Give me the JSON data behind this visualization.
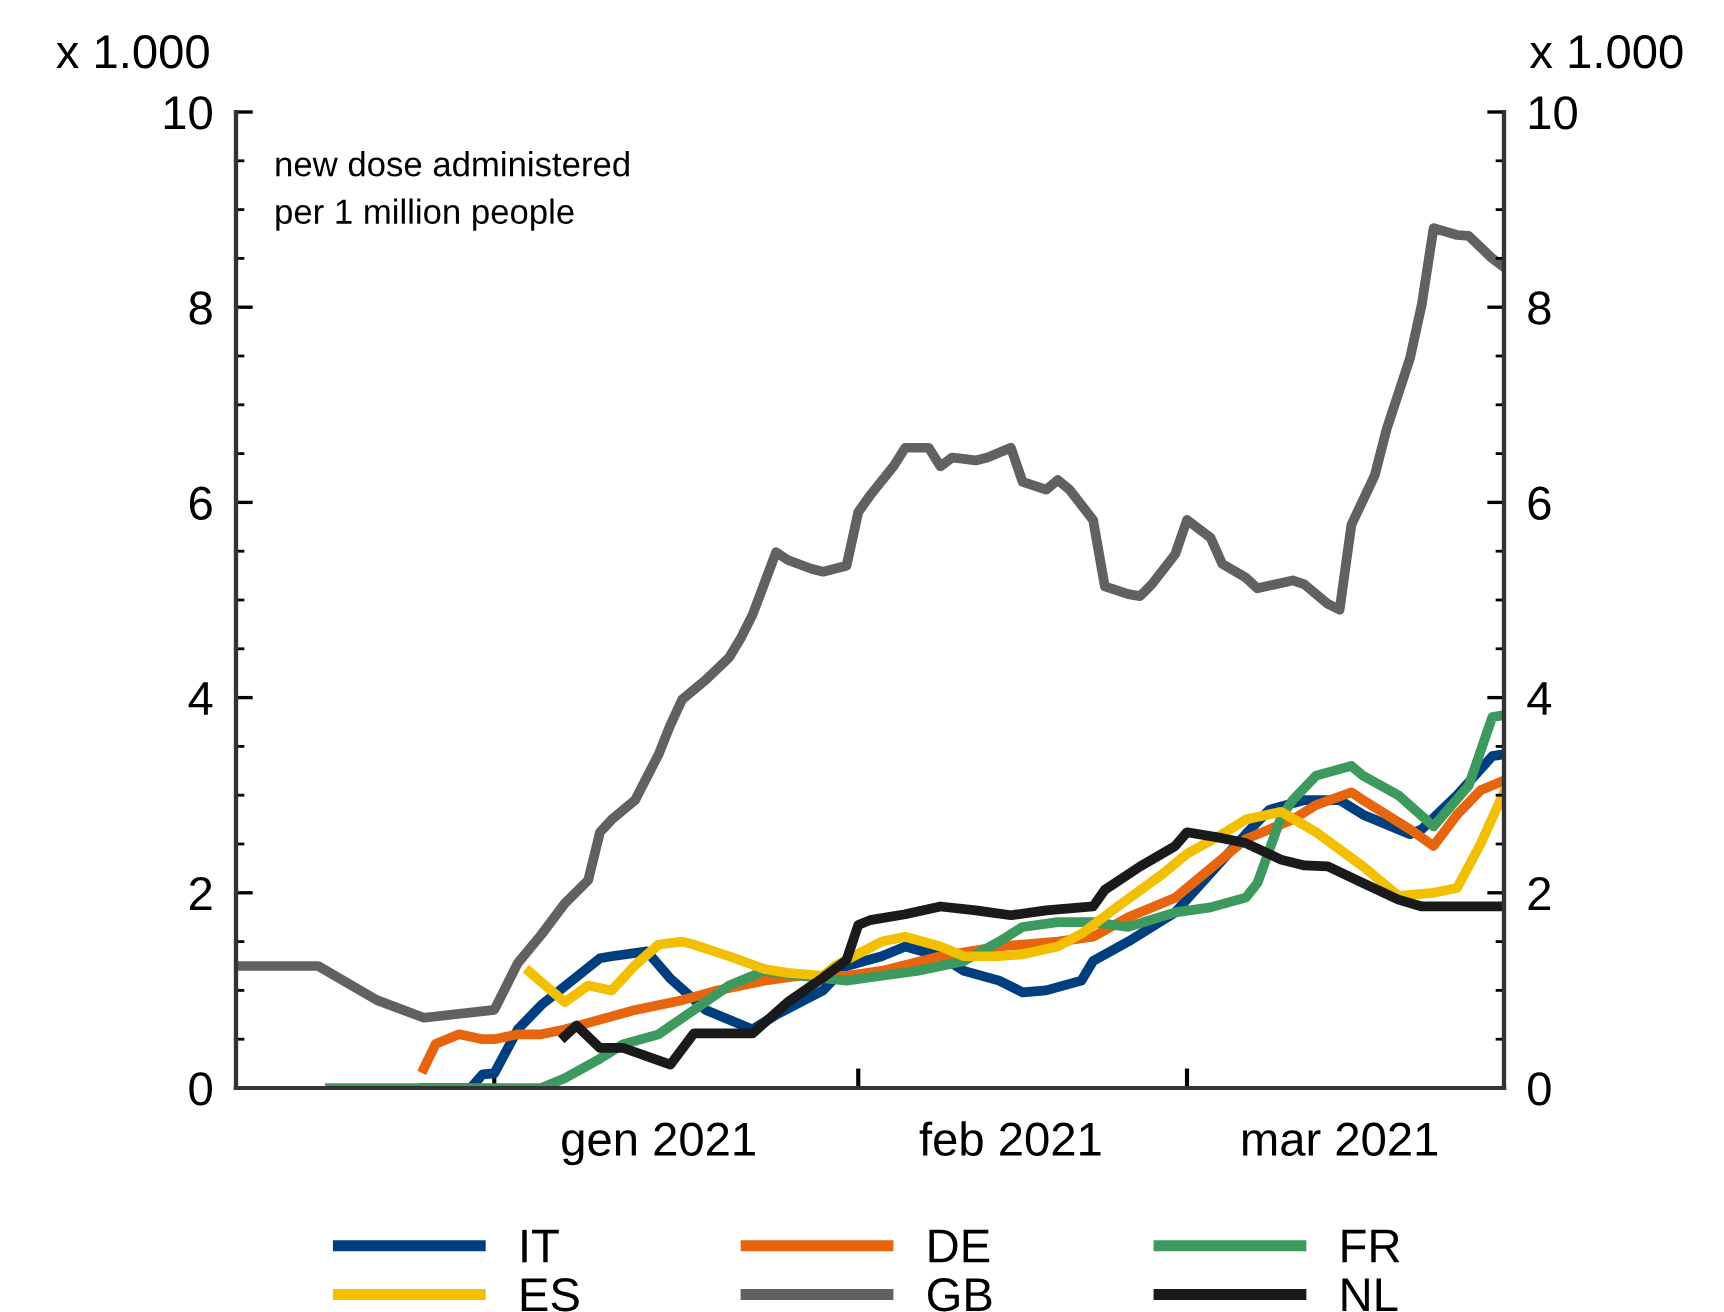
{
  "chart_data": {
    "type": "line",
    "ylabel": "x 1.000",
    "y2label": "x 1.000",
    "annotations": [
      "new dose administered\nper 1 million people"
    ],
    "xlim": [
      "2020-12-10",
      "2021-03-28"
    ],
    "xticks": [
      {
        "value": "2021-01-01",
        "label": null
      },
      {
        "value": "2021-02-01",
        "label": null
      },
      {
        "value": "2021-03-01",
        "label": null
      },
      {
        "value": "2021-01-15",
        "label": "gen 2021"
      },
      {
        "value": "2021-02-14",
        "label": "feb 2021"
      },
      {
        "value": "2021-03-14",
        "label": "mar 2021"
      }
    ],
    "ylim": [
      0,
      10
    ],
    "yticks": [
      0,
      2,
      4,
      6,
      8,
      10
    ],
    "y2lim": [
      0,
      10
    ],
    "y2ticks": [
      0,
      2,
      4,
      6,
      8,
      10
    ],
    "grid": false,
    "legend": "bottom",
    "marker": "none",
    "line_style": "solid",
    "series": [
      {
        "name": "IT",
        "color": "#003f7f",
        "x": [
          "2020-12-26",
          "2020-12-30",
          "2020-12-31",
          "2021-01-01",
          "2021-01-03",
          "2021-01-05",
          "2021-01-10",
          "2021-01-11",
          "2021-01-14",
          "2021-01-16",
          "2021-01-19",
          "2021-01-23",
          "2021-01-25",
          "2021-01-29",
          "2021-01-31",
          "2021-02-03",
          "2021-02-05",
          "2021-02-08",
          "2021-02-10",
          "2021-02-13",
          "2021-02-15",
          "2021-02-17",
          "2021-02-20",
          "2021-02-21",
          "2021-02-24",
          "2021-02-28",
          "2021-03-03",
          "2021-03-06",
          "2021-03-08",
          "2021-03-11",
          "2021-03-14",
          "2021-03-16",
          "2021-03-20",
          "2021-03-21",
          "2021-03-24",
          "2021-03-27",
          "2021-03-28"
        ],
        "values": [
          0,
          0,
          0.14,
          0.15,
          0.6,
          0.85,
          1.33,
          1.35,
          1.4,
          1.12,
          0.8,
          0.6,
          0.75,
          1.0,
          1.25,
          1.35,
          1.45,
          1.35,
          1.2,
          1.1,
          0.98,
          1.0,
          1.1,
          1.3,
          1.5,
          1.8,
          2.2,
          2.6,
          2.85,
          2.95,
          2.95,
          2.8,
          2.6,
          2.65,
          3.0,
          3.4,
          3.42
        ]
      },
      {
        "name": "DE",
        "color": "#e8650f",
        "x": [
          "2020-12-26",
          "2020-12-27",
          "2020-12-29",
          "2020-12-31",
          "2021-01-01",
          "2021-01-03",
          "2021-01-05",
          "2021-01-07",
          "2021-01-10",
          "2021-01-13",
          "2021-01-17",
          "2021-01-20",
          "2021-01-24",
          "2021-01-27",
          "2021-01-31",
          "2021-02-03",
          "2021-02-08",
          "2021-02-13",
          "2021-02-18",
          "2021-02-21",
          "2021-02-24",
          "2021-02-28",
          "2021-03-03",
          "2021-03-06",
          "2021-03-10",
          "2021-03-12",
          "2021-03-15",
          "2021-03-16",
          "2021-03-20",
          "2021-03-22",
          "2021-03-24",
          "2021-03-26",
          "2021-03-28"
        ],
        "values": [
          0.2,
          0.45,
          0.55,
          0.5,
          0.5,
          0.55,
          0.55,
          0.6,
          0.7,
          0.8,
          0.9,
          1.0,
          1.1,
          1.15,
          1.15,
          1.2,
          1.35,
          1.45,
          1.5,
          1.55,
          1.75,
          1.95,
          2.25,
          2.55,
          2.75,
          2.9,
          3.03,
          2.95,
          2.65,
          2.48,
          2.8,
          3.05,
          3.15
        ]
      },
      {
        "name": "FR",
        "color": "#3d9a5e",
        "x": [
          "2020-12-18",
          "2020-12-27",
          "2021-01-05",
          "2021-01-07",
          "2021-01-10",
          "2021-01-12",
          "2021-01-15",
          "2021-01-18",
          "2021-01-21",
          "2021-01-24",
          "2021-01-27",
          "2021-01-31",
          "2021-02-03",
          "2021-02-06",
          "2021-02-10",
          "2021-02-13",
          "2021-02-15",
          "2021-02-18",
          "2021-02-21",
          "2021-02-24",
          "2021-02-28",
          "2021-03-03",
          "2021-03-06",
          "2021-03-07",
          "2021-03-09",
          "2021-03-10",
          "2021-03-12",
          "2021-03-15",
          "2021-03-16",
          "2021-03-19",
          "2021-03-22",
          "2021-03-25",
          "2021-03-27",
          "2021-03-28"
        ],
        "values": [
          0,
          0,
          0,
          0.1,
          0.3,
          0.45,
          0.55,
          0.8,
          1.05,
          1.2,
          1.15,
          1.1,
          1.15,
          1.2,
          1.3,
          1.5,
          1.65,
          1.7,
          1.7,
          1.65,
          1.8,
          1.85,
          1.95,
          2.1,
          2.77,
          2.95,
          3.2,
          3.3,
          3.2,
          3.0,
          2.68,
          3.1,
          3.8,
          3.82
        ]
      },
      {
        "name": "ES",
        "color": "#f2c000",
        "x": [
          "2021-01-04",
          "2021-01-07",
          "2021-01-09",
          "2021-01-11",
          "2021-01-13",
          "2021-01-15",
          "2021-01-17",
          "2021-01-18",
          "2021-01-21",
          "2021-01-24",
          "2021-01-26",
          "2021-01-29",
          "2021-01-30",
          "2021-02-03",
          "2021-02-05",
          "2021-02-08",
          "2021-02-10",
          "2021-02-13",
          "2021-02-15",
          "2021-02-18",
          "2021-02-20",
          "2021-02-23",
          "2021-02-27",
          "2021-03-01",
          "2021-03-04",
          "2021-03-06",
          "2021-03-09",
          "2021-03-12",
          "2021-03-16",
          "2021-03-19",
          "2021-03-22",
          "2021-03-24",
          "2021-03-26",
          "2021-03-28"
        ],
        "values": [
          1.19,
          0.88,
          1.05,
          1.0,
          1.26,
          1.47,
          1.5,
          1.47,
          1.35,
          1.22,
          1.18,
          1.15,
          1.25,
          1.5,
          1.55,
          1.45,
          1.35,
          1.35,
          1.37,
          1.45,
          1.58,
          1.85,
          2.2,
          2.4,
          2.6,
          2.75,
          2.83,
          2.62,
          2.27,
          1.97,
          2.0,
          2.05,
          2.5,
          3.03
        ]
      },
      {
        "name": "GB",
        "color": "#636160",
        "x": [
          "2020-12-10",
          "2020-12-17",
          "2020-12-22",
          "2020-12-26",
          "2021-01-01",
          "2021-01-03",
          "2021-01-05",
          "2021-01-07",
          "2021-01-09",
          "2021-01-10",
          "2021-01-11",
          "2021-01-13",
          "2021-01-15",
          "2021-01-16",
          "2021-01-17",
          "2021-01-19",
          "2021-01-21",
          "2021-01-22",
          "2021-01-23",
          "2021-01-25",
          "2021-01-26",
          "2021-01-28",
          "2021-01-29",
          "2021-01-31",
          "2021-02-01",
          "2021-02-02",
          "2021-02-04",
          "2021-02-05",
          "2021-02-07",
          "2021-02-08",
          "2021-02-09",
          "2021-02-11",
          "2021-02-12",
          "2021-02-14",
          "2021-02-15",
          "2021-02-17",
          "2021-02-18",
          "2021-02-19",
          "2021-02-21",
          "2021-02-22",
          "2021-02-24",
          "2021-02-25",
          "2021-02-26",
          "2021-02-28",
          "2021-03-01",
          "2021-03-03",
          "2021-03-04",
          "2021-03-06",
          "2021-03-07",
          "2021-03-10",
          "2021-03-11",
          "2021-03-13",
          "2021-03-14",
          "2021-03-15",
          "2021-03-17",
          "2021-03-18",
          "2021-03-20",
          "2021-03-21",
          "2021-03-22",
          "2021-03-24",
          "2021-03-25",
          "2021-03-27",
          "2021-03-28"
        ],
        "values": [
          1.25,
          1.25,
          0.9,
          0.72,
          0.8,
          1.28,
          1.57,
          1.89,
          2.13,
          2.62,
          2.75,
          2.95,
          3.42,
          3.72,
          3.98,
          4.18,
          4.41,
          4.61,
          4.85,
          5.49,
          5.41,
          5.32,
          5.29,
          5.35,
          5.9,
          6.07,
          6.37,
          6.56,
          6.56,
          6.37,
          6.46,
          6.43,
          6.46,
          6.56,
          6.21,
          6.13,
          6.23,
          6.13,
          5.82,
          5.14,
          5.06,
          5.04,
          5.16,
          5.47,
          5.82,
          5.64,
          5.37,
          5.23,
          5.12,
          5.2,
          5.16,
          4.96,
          4.9,
          5.77,
          6.28,
          6.75,
          7.48,
          8.03,
          8.81,
          8.74,
          8.73,
          8.5,
          8.41
        ]
      },
      {
        "name": "NL",
        "color": "#1a1a1a",
        "x": [
          "2021-01-07",
          "2021-01-08",
          "2021-01-10",
          "2021-01-12",
          "2021-01-16",
          "2021-01-18",
          "2021-01-23",
          "2021-01-26",
          "2021-01-29",
          "2021-01-31",
          "2021-02-01",
          "2021-02-02",
          "2021-02-05",
          "2021-02-08",
          "2021-02-11",
          "2021-02-14",
          "2021-02-17",
          "2021-02-21",
          "2021-02-22",
          "2021-02-25",
          "2021-02-28",
          "2021-03-01",
          "2021-03-04",
          "2021-03-06",
          "2021-03-09",
          "2021-03-11",
          "2021-03-13",
          "2021-03-16",
          "2021-03-19",
          "2021-03-21",
          "2021-03-28"
        ],
        "values": [
          0.53,
          0.64,
          0.41,
          0.41,
          0.24,
          0.56,
          0.56,
          0.88,
          1.13,
          1.31,
          1.67,
          1.72,
          1.78,
          1.86,
          1.82,
          1.77,
          1.82,
          1.86,
          2.03,
          2.27,
          2.48,
          2.62,
          2.56,
          2.51,
          2.34,
          2.28,
          2.27,
          2.1,
          1.93,
          1.86,
          1.86
        ]
      }
    ]
  }
}
